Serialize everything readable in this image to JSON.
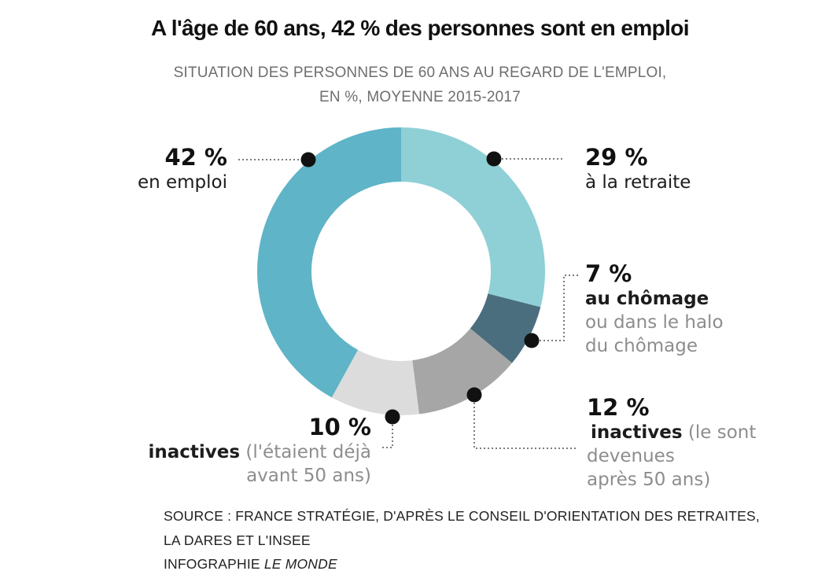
{
  "header": {
    "title": "A l'âge de 60 ans, 42 % des personnes sont en emploi",
    "subtitle_line1": "SITUATION DES PERSONNES DE 60 ANS AU REGARD DE L'EMPLOI,",
    "subtitle_line2": "EN %, MOYENNE 2015-2017"
  },
  "chart_data": {
    "type": "pie",
    "subtype": "donut",
    "title": "Situation des personnes de 60 ans au regard de l'emploi, en %, moyenne 2015-2017",
    "unit": "%",
    "start_angle_deg": 0,
    "clockwise": true,
    "inner_radius_ratio": 0.62,
    "legend_position": "callouts",
    "segments": [
      {
        "id": "retraite",
        "label": "à la retraite",
        "value": 29,
        "color": "#8ed0d6"
      },
      {
        "id": "chomage",
        "label": "au chômage ou dans le halo du chômage",
        "value": 7,
        "color": "#4a6e7d"
      },
      {
        "id": "inactives-apres",
        "label": "inactives (le sont devenues après 50 ans)",
        "value": 12,
        "color": "#a6a6a6"
      },
      {
        "id": "inactives-avant",
        "label": "inactives (l'étaient déjà avant 50 ans)",
        "value": 10,
        "color": "#dcdcdc"
      },
      {
        "id": "emploi",
        "label": "en emploi",
        "value": 42,
        "color": "#5fb4c7"
      }
    ]
  },
  "callouts": {
    "emploi": {
      "pct": "42 %",
      "text": "en emploi"
    },
    "retraite": {
      "pct": "29 %",
      "text": "à la retraite"
    },
    "chomage": {
      "pct": "7 %",
      "bold": "au chômage",
      "gray1": "ou dans le halo",
      "gray2": "du chômage"
    },
    "inactives_apres": {
      "pct": "12 %",
      "bold": "inactives",
      "gray1": "(le sont",
      "gray2": "devenues",
      "gray3": "après 50 ans)"
    },
    "inactives_avant": {
      "pct": "10 %",
      "bold": "inactives",
      "gray1": "(l'étaient déjà",
      "gray2": "avant 50 ans)"
    }
  },
  "footer": {
    "source_line1": "SOURCE : FRANCE STRATÉGIE, D'APRÈS LE CONSEIL D'ORIENTATION DES RETRAITES,",
    "source_line2": "LA DARES ET L'INSEE",
    "credit_prefix": "INFOGRAPHIE",
    "credit_name": "LE MONDE"
  }
}
